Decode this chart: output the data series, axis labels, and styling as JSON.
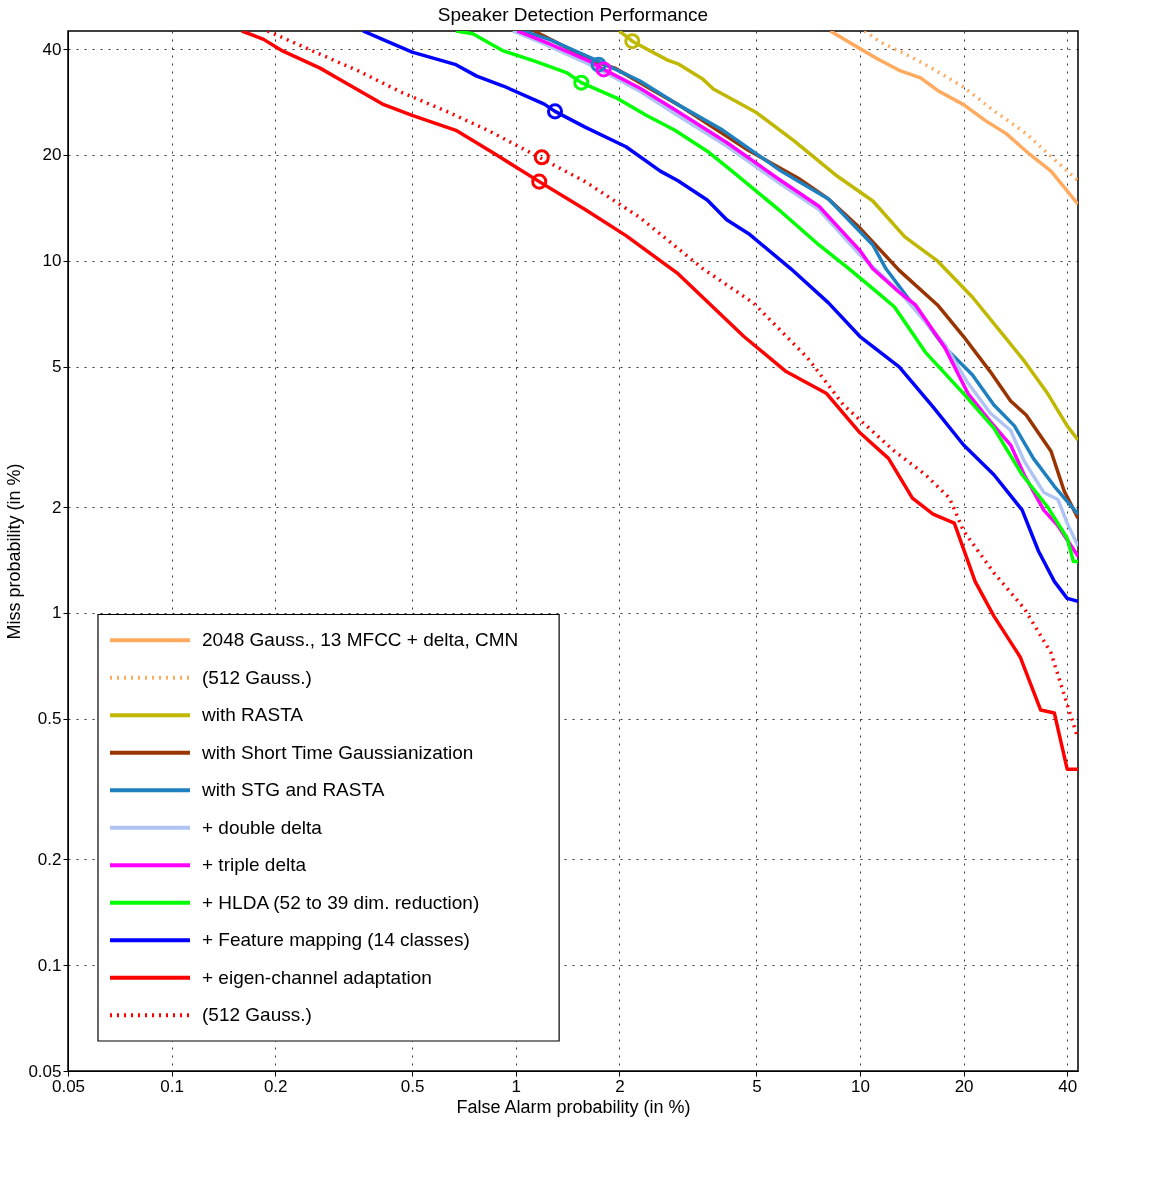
{
  "chart_data": {
    "type": "line",
    "title": "Speaker Detection Performance",
    "xlabel": "False Alarm probability (in %)",
    "ylabel": "Miss probability (in %)",
    "log": "xy",
    "grid": true,
    "legend": "bottom left",
    "xlim": [
      0.05,
      43
    ],
    "ylim": [
      0.05,
      45
    ],
    "xticks": [
      0.05,
      0.1,
      0.2,
      0.5,
      1,
      2,
      5,
      10,
      20,
      40
    ],
    "yticks": [
      0.05,
      0.1,
      0.2,
      0.5,
      1,
      2,
      5,
      10,
      20,
      40
    ],
    "series": [
      {
        "name": "2048 Gauss., 13 MFCC + delta, CMN",
        "type": "line",
        "color": "#ffaa5e",
        "line_style": "solid",
        "x": [
          8.2,
          10,
          11.3,
          13,
          15,
          16.8,
          20,
          23.2,
          26.6,
          31.1,
          35.9,
          43
        ],
        "values": [
          45,
          40.1,
          37.4,
          34.8,
          33.1,
          30.5,
          27.8,
          25,
          23,
          20.1,
          18,
          14.5
        ]
      },
      {
        "name": "(512 Gauss.)",
        "type": "line",
        "color": "#ffaa5e",
        "line_style": "dotted",
        "x": [
          10.3,
          11.5,
          13.5,
          16,
          20,
          24.5,
          30.4,
          35.9,
          43
        ],
        "values": [
          45,
          41.8,
          38.8,
          35.5,
          31.2,
          26.7,
          23,
          19.8,
          16.9
        ]
      },
      {
        "name": "with RASTA",
        "type": "line",
        "color": "#c0b800",
        "line_style": "solid",
        "x": [
          2.0,
          2.18,
          2.76,
          2.96,
          3.5,
          3.75,
          5.0,
          6.45,
          8.6,
          10.9,
          13.5,
          16.8,
          21.2,
          25.6,
          30,
          35.1,
          40,
          43
        ],
        "values": [
          45,
          42.1,
          37.2,
          36.3,
          32.8,
          30.8,
          26.4,
          21.9,
          17.4,
          14.8,
          11.7,
          10,
          7.9,
          6.3,
          5.2,
          4.2,
          3.4,
          3.1
        ]
      },
      {
        "name": "with Short Time Gaussianization",
        "type": "line",
        "color": "#993300",
        "line_style": "solid",
        "x": [
          1.13,
          1.41,
          1.59,
          1.94,
          2.96,
          4.75,
          6.6,
          8.1,
          10,
          13,
          16.8,
          20,
          23.9,
          27.4,
          30.4,
          35.9,
          39.2,
          43
        ],
        "values": [
          45,
          40.3,
          37.6,
          35.3,
          27.8,
          20.6,
          17.2,
          15,
          12.4,
          9.4,
          7.5,
          6.1,
          4.85,
          4.0,
          3.65,
          2.88,
          2.22,
          1.86
        ]
      },
      {
        "name": "with STG and RASTA",
        "type": "line",
        "color": "#1f80c0",
        "line_style": "solid",
        "x": [
          1.05,
          1.25,
          1.71,
          2.29,
          2.96,
          4.0,
          5.9,
          8.1,
          10.9,
          11.9,
          14.5,
          17.6,
          21.2,
          24.5,
          28.1,
          31.9,
          36.7,
          43
        ],
        "values": [
          45,
          42.6,
          37.2,
          32.5,
          27.8,
          23.5,
          18,
          15,
          11.1,
          9.5,
          7.35,
          5.7,
          4.75,
          3.9,
          3.4,
          2.75,
          2.29,
          1.91
        ]
      },
      {
        "name": "+ double delta",
        "type": "line",
        "color": "#b0c4f4",
        "line_style": "solid",
        "x": [
          0.98,
          1.2,
          1.6,
          1.8,
          2.3,
          2.9,
          4.1,
          5.9,
          7.6,
          10,
          13,
          17.6,
          20.6,
          23.9,
          27.4,
          30,
          34.2,
          37.6,
          40,
          43
        ],
        "values": [
          45,
          41.5,
          36.5,
          34.5,
          30.3,
          26.2,
          21.2,
          16.5,
          14,
          10.4,
          8.2,
          5.8,
          4.5,
          3.7,
          3.3,
          2.7,
          2.2,
          2.1,
          1.8,
          1.55
        ]
      },
      {
        "name": "+ triple delta",
        "type": "line",
        "color": "#ff00ff",
        "line_style": "solid",
        "x": [
          1.01,
          1.25,
          1.64,
          1.8,
          2.29,
          2.9,
          4.1,
          5.9,
          7.6,
          10,
          10.9,
          13,
          14.5,
          17.6,
          20.6,
          23.9,
          27.4,
          30,
          34.2,
          37.6,
          43
        ],
        "values": [
          45,
          41.4,
          36.9,
          35,
          31,
          26.9,
          21.7,
          16.9,
          14.3,
          10.7,
          9.5,
          8.15,
          7.5,
          5.7,
          4.2,
          3.5,
          3.0,
          2.47,
          1.96,
          1.77,
          1.45
        ]
      },
      {
        "name": "+ HLDA (52 to 39 dim. reduction)",
        "type": "line",
        "color": "#00ff00",
        "line_style": "solid",
        "x": [
          0.67,
          0.75,
          0.92,
          1.14,
          1.41,
          1.55,
          1.98,
          2.4,
          2.9,
          3.6,
          4.25,
          5.9,
          7.6,
          9.3,
          11.3,
          12.6,
          15.5,
          20,
          24.5,
          29.6,
          35.1,
          40,
          41.7,
          43
        ],
        "values": [
          45,
          44.2,
          39.5,
          36.9,
          34.2,
          32.1,
          28.9,
          25.9,
          23.5,
          20.5,
          18,
          13.8,
          11.1,
          9.5,
          8.1,
          7.4,
          5.5,
          4.2,
          3.35,
          2.47,
          2.0,
          1.63,
          1.4,
          1.4
        ]
      },
      {
        "name": "+ Feature mapping (14 classes)",
        "type": "line",
        "color": "#0000ff",
        "line_style": "solid",
        "x": [
          0.36,
          0.41,
          0.5,
          0.67,
          0.77,
          0.92,
          1.21,
          1.3,
          1.59,
          2.09,
          2.63,
          2.96,
          3.6,
          4.1,
          4.75,
          6.3,
          8.1,
          10,
          13,
          16.3,
          20,
          24.5,
          29.6,
          33,
          36.7,
          40,
          43
        ],
        "values": [
          45,
          42.6,
          39.2,
          36.1,
          33.5,
          31.4,
          27.9,
          26.6,
          24,
          21.1,
          18,
          16.9,
          14.9,
          13.1,
          11.95,
          9.5,
          7.6,
          6.1,
          5,
          3.85,
          3.0,
          2.47,
          1.96,
          1.5,
          1.23,
          1.1,
          1.08
        ]
      },
      {
        "name": "+ eigen-channel adaptation",
        "type": "line",
        "color": "#ff0000",
        "line_style": "solid",
        "x": [
          0.16,
          0.185,
          0.21,
          0.27,
          0.32,
          0.41,
          0.5,
          0.67,
          0.88,
          1.17,
          1.59,
          2.09,
          2.96,
          4.6,
          6.1,
          8,
          10,
          12.1,
          14.2,
          16.3,
          18.8,
          21.6,
          24.5,
          29.2,
          33.5,
          36.7,
          40,
          43
        ],
        "values": [
          45,
          42.6,
          39.5,
          35.3,
          32.1,
          27.9,
          25.9,
          23.5,
          20,
          16.8,
          14,
          11.8,
          9.2,
          6.1,
          4.85,
          4.2,
          3.25,
          2.75,
          2.12,
          1.91,
          1.8,
          1.23,
          0.98,
          0.75,
          0.53,
          0.52,
          0.36,
          0.36
        ]
      },
      {
        "name": "(512 Gauss.)",
        "type": "line",
        "color": "#ff0000",
        "line_style": "dotted",
        "x": [
          0.19,
          0.26,
          0.35,
          0.47,
          0.63,
          0.83,
          1.17,
          1.59,
          2.29,
          3.5,
          4.9,
          7.05,
          8.95,
          12.6,
          15.5,
          18.2,
          20,
          24.5,
          30,
          35.9,
          40,
          43
        ],
        "values": [
          45,
          39.3,
          34.6,
          30,
          26.6,
          23.5,
          19.7,
          16.8,
          13.3,
          9.5,
          7.6,
          5.3,
          3.9,
          2.88,
          2.47,
          2.12,
          1.71,
          1.3,
          1.03,
          0.77,
          0.55,
          0.44
        ]
      },
      {
        "type": "scatter",
        "marker": "circle",
        "x": [
          2.18,
          1.74,
          1.8,
          1.55,
          1.3,
          1.19,
          1.17
        ],
        "values": [
          42.1,
          36.1,
          35,
          32.1,
          26.6,
          19.7,
          16.8
        ],
        "colors": [
          "#c0b800",
          "#1f80c0",
          "#ff00ff",
          "#00ff00",
          "#0000ff",
          "#ff0000",
          "#ff0000"
        ]
      }
    ]
  }
}
